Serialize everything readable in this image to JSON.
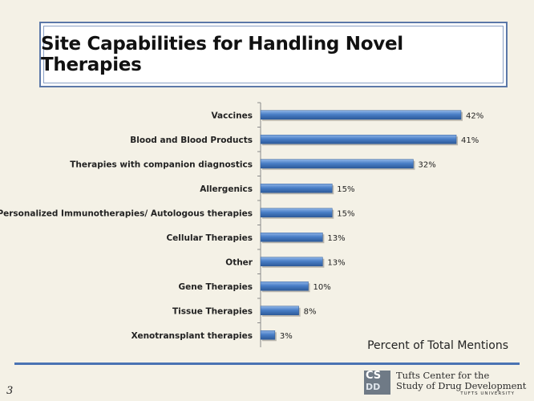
{
  "title": "Site Capabilities for Handling Novel Therapies",
  "chart_data": {
    "type": "bar",
    "orientation": "horizontal",
    "categories": [
      "Vaccines",
      "Blood and Blood Products",
      "Therapies with companion diagnostics",
      "Allergenics",
      "Personalized Immunotherapies/ Autologous therapies",
      "Cellular Therapies",
      "Other",
      "Gene Therapies",
      "Tissue Therapies",
      "Xenotransplant therapies"
    ],
    "values": [
      42,
      41,
      32,
      15,
      15,
      13,
      13,
      10,
      8,
      3
    ],
    "value_labels": [
      "42%",
      "41%",
      "32%",
      "15%",
      "15%",
      "13%",
      "13%",
      "10%",
      "8%",
      "3%"
    ],
    "xlabel": "Percent of Total Mentions",
    "ylabel": "",
    "xlim": [
      0,
      42
    ],
    "grid": false,
    "bar_color": "#4a7fc7"
  },
  "footer": {
    "slide_number": "3",
    "logo_mark_top": "CS",
    "logo_mark_bottom": "DD",
    "logo_line1": "Tufts Center for the",
    "logo_line2": "Study of Drug Development",
    "logo_university": "TUFTS UNIVERSITY"
  }
}
